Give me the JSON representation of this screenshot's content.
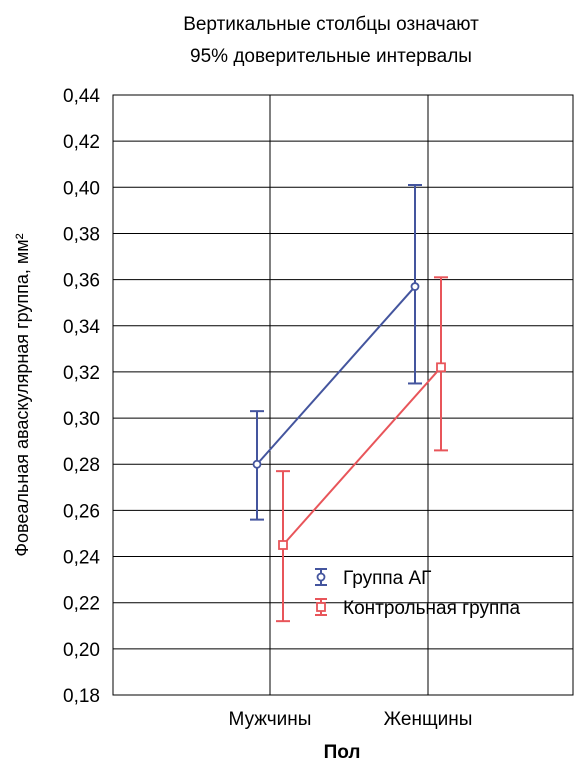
{
  "chart_data": {
    "type": "line",
    "title": [
      "Вертикальные столбцы означают",
      "95% доверительные интервалы"
    ],
    "xlabel": "Пол",
    "ylabel": "Фовеальная аваскулярная группа, мм²",
    "categories": [
      "Мужчины",
      "Женщины"
    ],
    "ylim": [
      0.18,
      0.44
    ],
    "yticks": [
      "0,18",
      "0,20",
      "0,22",
      "0,24",
      "0,26",
      "0,28",
      "0,30",
      "0,32",
      "0,34",
      "0,36",
      "0,38",
      "0,40",
      "0,42",
      "0,44"
    ],
    "grid": true,
    "legend_position": "lower-right",
    "series": [
      {
        "name": "Группа АГ",
        "color": "#44559e",
        "marker": "circle",
        "values": [
          0.28,
          0.357
        ],
        "ci_low": [
          0.256,
          0.315
        ],
        "ci_high": [
          0.303,
          0.401
        ]
      },
      {
        "name": "Контрольная группа",
        "color": "#e8555a",
        "marker": "square",
        "values": [
          0.245,
          0.322
        ],
        "ci_low": [
          0.212,
          0.286
        ],
        "ci_high": [
          0.277,
          0.361
        ]
      }
    ]
  }
}
